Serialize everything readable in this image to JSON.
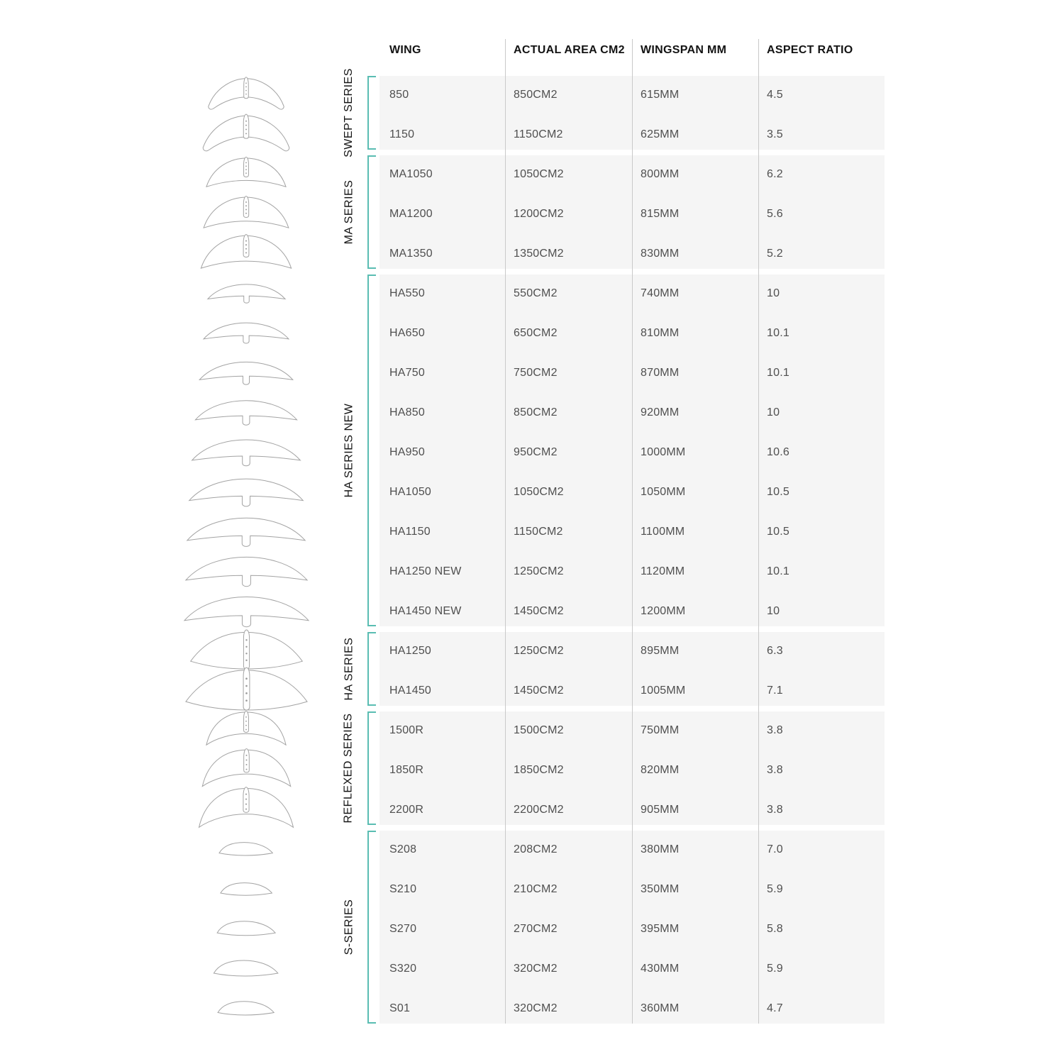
{
  "colors": {
    "accent": "#5abdb2",
    "row_background": "#f5f5f5",
    "column_divider": "#c9c9c9",
    "header_text": "#131313",
    "cell_text": "#4f4f4f",
    "silhouette_outline": "#a3a3a3"
  },
  "chart_data": {
    "type": "table",
    "title": "",
    "columns": [
      "WING",
      "ACTUAL AREA CM2",
      "WINGSPAN MM",
      "ASPECT RATIO"
    ],
    "sections": [
      {
        "label": "SWEPT SERIES",
        "wing_shape": "swept",
        "rows": [
          {
            "wing": "850",
            "area": "850CM2",
            "wingspan": "615MM",
            "aspect_ratio": "4.5"
          },
          {
            "wing": "1150",
            "area": "1150CM2",
            "wingspan": "625MM",
            "aspect_ratio": "3.5"
          }
        ]
      },
      {
        "label": "MA SERIES",
        "wing_shape": "ma",
        "rows": [
          {
            "wing": "MA1050",
            "area": "1050CM2",
            "wingspan": "800MM",
            "aspect_ratio": "6.2"
          },
          {
            "wing": "MA1200",
            "area": "1200CM2",
            "wingspan": "815MM",
            "aspect_ratio": "5.6"
          },
          {
            "wing": "MA1350",
            "area": "1350CM2",
            "wingspan": "830MM",
            "aspect_ratio": "5.2"
          }
        ]
      },
      {
        "label": "HA SERIES NEW",
        "wing_shape": "ha_new",
        "rows": [
          {
            "wing": "HA550",
            "area": "550CM2",
            "wingspan": "740MM",
            "aspect_ratio": "10"
          },
          {
            "wing": "HA650",
            "area": "650CM2",
            "wingspan": "810MM",
            "aspect_ratio": "10.1"
          },
          {
            "wing": "HA750",
            "area": "750CM2",
            "wingspan": "870MM",
            "aspect_ratio": "10.1"
          },
          {
            "wing": "HA850",
            "area": "850CM2",
            "wingspan": "920MM",
            "aspect_ratio": "10"
          },
          {
            "wing": "HA950",
            "area": "950CM2",
            "wingspan": "1000MM",
            "aspect_ratio": "10.6"
          },
          {
            "wing": "HA1050",
            "area": "1050CM2",
            "wingspan": "1050MM",
            "aspect_ratio": "10.5"
          },
          {
            "wing": "HA1150",
            "area": "1150CM2",
            "wingspan": "1100MM",
            "aspect_ratio": "10.5"
          },
          {
            "wing": "HA1250 NEW",
            "area": "1250CM2",
            "wingspan": "1120MM",
            "aspect_ratio": "10.1"
          },
          {
            "wing": "HA1450 NEW",
            "area": "1450CM2",
            "wingspan": "1200MM",
            "aspect_ratio": "10"
          }
        ]
      },
      {
        "label": "HA SERIES",
        "wing_shape": "ha_classic",
        "rows": [
          {
            "wing": "HA1250",
            "area": "1250CM2",
            "wingspan": "895MM",
            "aspect_ratio": "6.3"
          },
          {
            "wing": "HA1450",
            "area": "1450CM2",
            "wingspan": "1005MM",
            "aspect_ratio": "7.1"
          }
        ]
      },
      {
        "label": "REFLEXED SERIES",
        "wing_shape": "reflexed",
        "rows": [
          {
            "wing": "1500R",
            "area": "1500CM2",
            "wingspan": "750MM",
            "aspect_ratio": "3.8"
          },
          {
            "wing": "1850R",
            "area": "1850CM2",
            "wingspan": "820MM",
            "aspect_ratio": "3.8"
          },
          {
            "wing": "2200R",
            "area": "2200CM2",
            "wingspan": "905MM",
            "aspect_ratio": "3.8"
          }
        ]
      },
      {
        "label": "S-SERIES",
        "wing_shape": "s",
        "rows": [
          {
            "wing": "S208",
            "area": "208CM2",
            "wingspan": "380MM",
            "aspect_ratio": "7.0"
          },
          {
            "wing": "S210",
            "area": "210CM2",
            "wingspan": "350MM",
            "aspect_ratio": "5.9"
          },
          {
            "wing": "S270",
            "area": "270CM2",
            "wingspan": "395MM",
            "aspect_ratio": "5.8"
          },
          {
            "wing": "S320",
            "area": "320CM2",
            "wingspan": "430MM",
            "aspect_ratio": "5.9"
          },
          {
            "wing": "S01",
            "area": "320CM2",
            "wingspan": "360MM",
            "aspect_ratio": "4.7"
          }
        ]
      }
    ]
  }
}
